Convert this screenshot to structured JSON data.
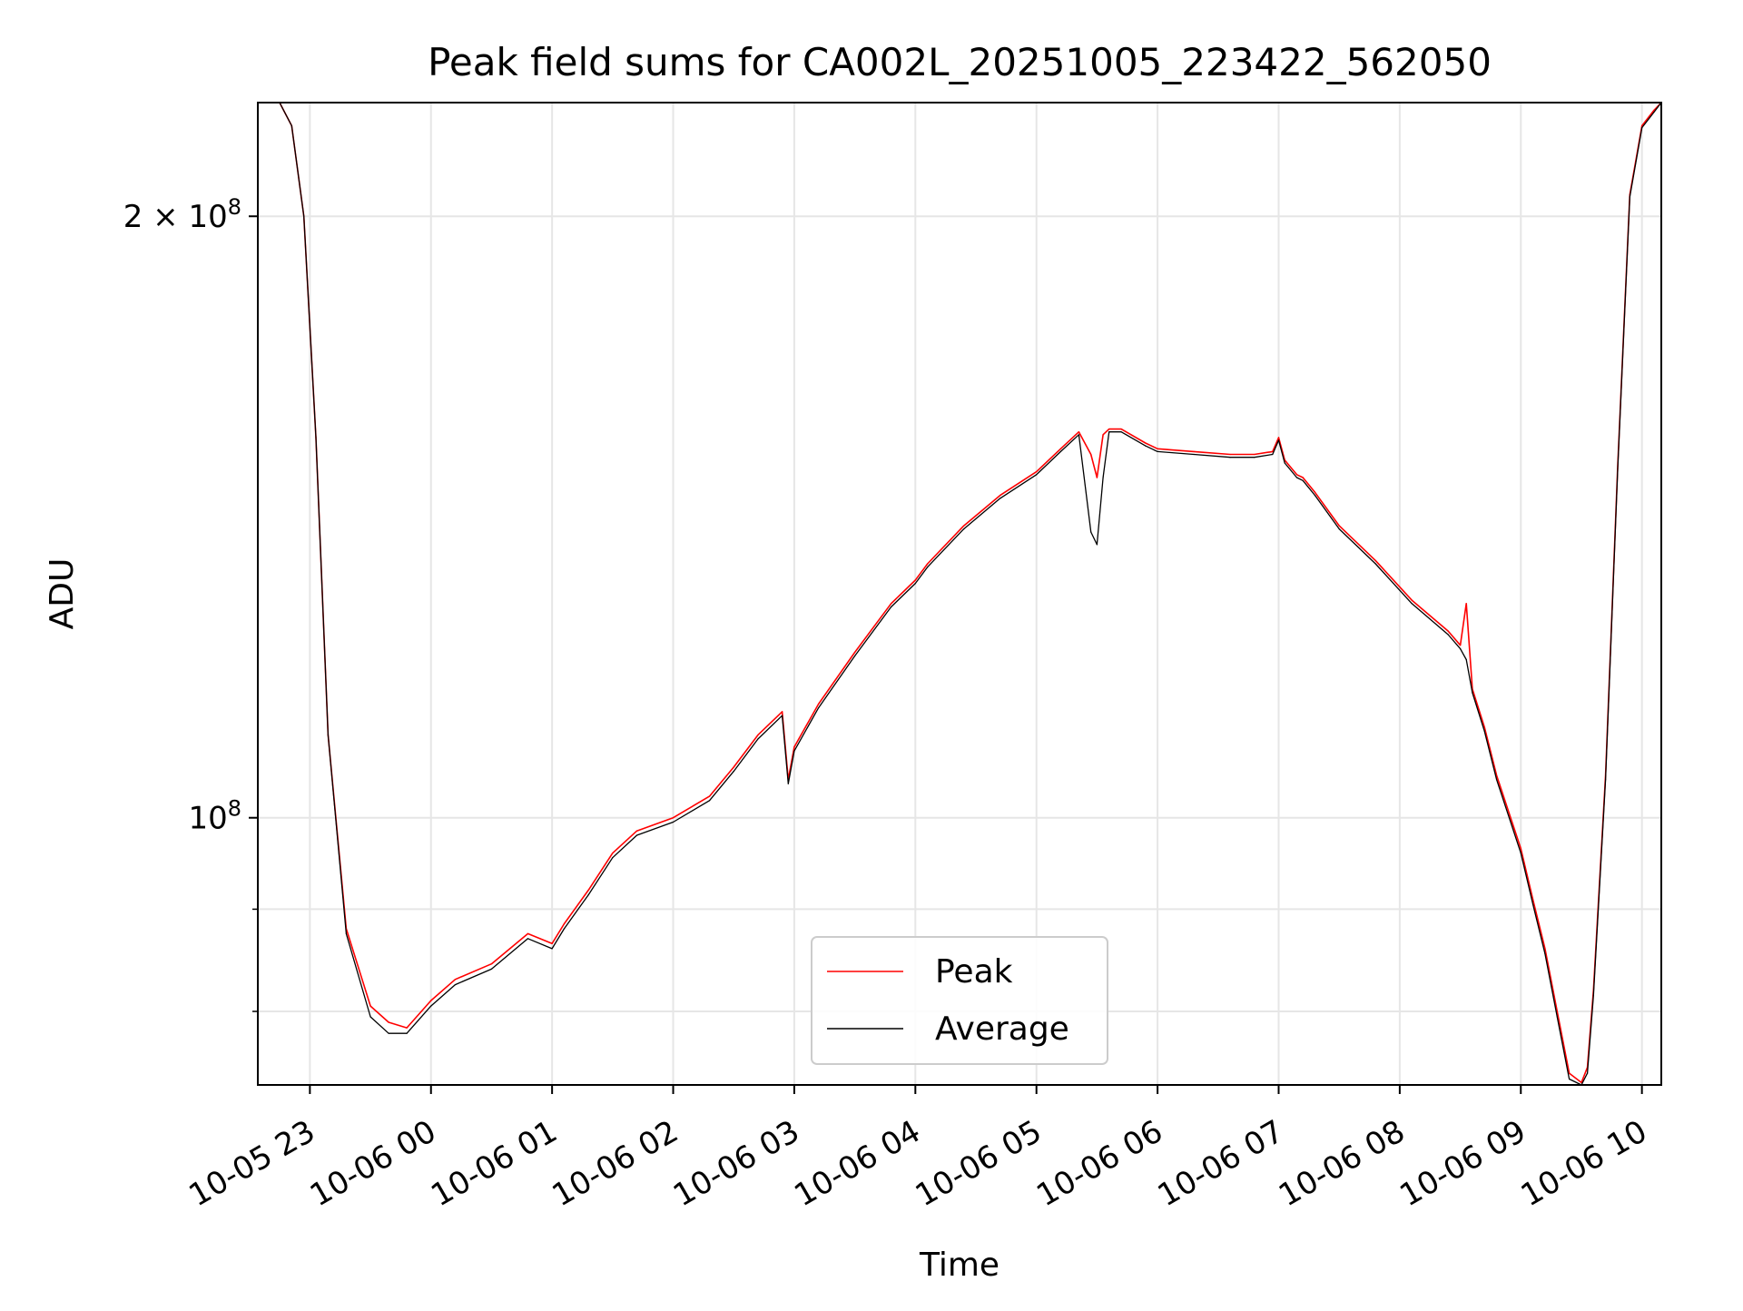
{
  "chart_data": {
    "type": "line",
    "title": "Peak field sums for CA002L_20251005_223422_562050",
    "xlabel": "Time",
    "ylabel": "ADU",
    "yscale": "log",
    "ylim": [
      73500000,
      228000000
    ],
    "xlim_hours": [
      -0.43,
      11.16
    ],
    "grid": true,
    "legend_position": "lower-center",
    "y_ticks": [
      {
        "value": 100000000,
        "base": "10",
        "exp": "8",
        "prefix": ""
      },
      {
        "value": 200000000,
        "base": "10",
        "exp": "8",
        "prefix": "2 × "
      }
    ],
    "y_minor_ticks": [
      80000000,
      90000000
    ],
    "x_ticks": [
      {
        "hours": 0,
        "label": "10-05 23"
      },
      {
        "hours": 1,
        "label": "10-06 00"
      },
      {
        "hours": 2,
        "label": "10-06 01"
      },
      {
        "hours": 3,
        "label": "10-06 02"
      },
      {
        "hours": 4,
        "label": "10-06 03"
      },
      {
        "hours": 5,
        "label": "10-06 04"
      },
      {
        "hours": 6,
        "label": "10-06 05"
      },
      {
        "hours": 7,
        "label": "10-06 06"
      },
      {
        "hours": 8,
        "label": "10-06 07"
      },
      {
        "hours": 9,
        "label": "10-06 08"
      },
      {
        "hours": 10,
        "label": "10-06 09"
      },
      {
        "hours": 11,
        "label": "10-06 10"
      }
    ],
    "x_unit_note": "hours after 2025-10-05 23:00",
    "series": [
      {
        "name": "Peak",
        "color": "#ff0000",
        "x_hours": [
          -0.43,
          -0.25,
          -0.15,
          -0.05,
          0.05,
          0.15,
          0.3,
          0.5,
          0.65,
          0.8,
          1.0,
          1.2,
          1.5,
          1.8,
          2.0,
          2.1,
          2.3,
          2.5,
          2.7,
          3.0,
          3.3,
          3.5,
          3.7,
          3.9,
          3.95,
          4.0,
          4.2,
          4.5,
          4.8,
          5.0,
          5.1,
          5.4,
          5.7,
          6.0,
          6.2,
          6.35,
          6.45,
          6.5,
          6.55,
          6.6,
          6.7,
          6.9,
          7.0,
          7.3,
          7.6,
          7.8,
          7.95,
          8.0,
          8.05,
          8.15,
          8.2,
          8.3,
          8.5,
          8.8,
          9.1,
          9.4,
          9.5,
          9.55,
          9.6,
          9.7,
          9.8,
          10.0,
          10.1,
          10.2,
          10.3,
          10.4,
          10.5,
          10.55,
          10.6,
          10.7,
          10.8,
          10.9,
          11.0,
          11.1,
          11.16
        ],
        "values": [
          228000000,
          228000000,
          222000000,
          200000000,
          155000000,
          110000000,
          88000000,
          80500000,
          79000000,
          78500000,
          81000000,
          83000000,
          84500000,
          87500000,
          86500000,
          88500000,
          92000000,
          96000000,
          98500000,
          100000000,
          102500000,
          106000000,
          110000000,
          113000000,
          104500000,
          108500000,
          114000000,
          121000000,
          128000000,
          131500000,
          134000000,
          140000000,
          145000000,
          149000000,
          153000000,
          156000000,
          152000000,
          148000000,
          155500000,
          156500000,
          156500000,
          154000000,
          153000000,
          152500000,
          152000000,
          152000000,
          152500000,
          155000000,
          151000000,
          148500000,
          148000000,
          145500000,
          140000000,
          134500000,
          128500000,
          124000000,
          122000000,
          128000000,
          116000000,
          111000000,
          105000000,
          96500000,
          91000000,
          86000000,
          80000000,
          74500000,
          73700000,
          75000000,
          82000000,
          105000000,
          150000000,
          205000000,
          222000000,
          226000000,
          228000000
        ]
      },
      {
        "name": "Average",
        "color": "#000000",
        "x_hours": [
          -0.43,
          -0.25,
          -0.15,
          -0.05,
          0.05,
          0.15,
          0.3,
          0.5,
          0.65,
          0.8,
          1.0,
          1.2,
          1.5,
          1.8,
          2.0,
          2.1,
          2.3,
          2.5,
          2.7,
          3.0,
          3.3,
          3.5,
          3.7,
          3.9,
          3.95,
          4.0,
          4.2,
          4.5,
          4.8,
          5.0,
          5.1,
          5.4,
          5.7,
          6.0,
          6.2,
          6.35,
          6.45,
          6.5,
          6.55,
          6.6,
          6.7,
          6.9,
          7.0,
          7.3,
          7.6,
          7.8,
          7.95,
          8.0,
          8.05,
          8.15,
          8.2,
          8.3,
          8.5,
          8.8,
          9.1,
          9.4,
          9.5,
          9.55,
          9.6,
          9.7,
          9.8,
          10.0,
          10.1,
          10.2,
          10.3,
          10.4,
          10.5,
          10.55,
          10.6,
          10.7,
          10.8,
          10.9,
          11.0,
          11.1,
          11.16
        ],
        "values": [
          228000000,
          228000000,
          222000000,
          200000000,
          155000000,
          110000000,
          87500000,
          79500000,
          78000000,
          78000000,
          80500000,
          82500000,
          84000000,
          87000000,
          86000000,
          88000000,
          91500000,
          95500000,
          98000000,
          99500000,
          102000000,
          105500000,
          109500000,
          112500000,
          104000000,
          108000000,
          113500000,
          120500000,
          127500000,
          131000000,
          133500000,
          139500000,
          144500000,
          148500000,
          152500000,
          155500000,
          139000000,
          137000000,
          148000000,
          156000000,
          156000000,
          153500000,
          152500000,
          152000000,
          151500000,
          151500000,
          152000000,
          154500000,
          150500000,
          148000000,
          147500000,
          145000000,
          139500000,
          134000000,
          128000000,
          123500000,
          121500000,
          120000000,
          115500000,
          110500000,
          104500000,
          96000000,
          90500000,
          85500000,
          79500000,
          74000000,
          73500000,
          74500000,
          81500000,
          104500000,
          149500000,
          204500000,
          221500000,
          225500000,
          228000000
        ]
      }
    ]
  }
}
